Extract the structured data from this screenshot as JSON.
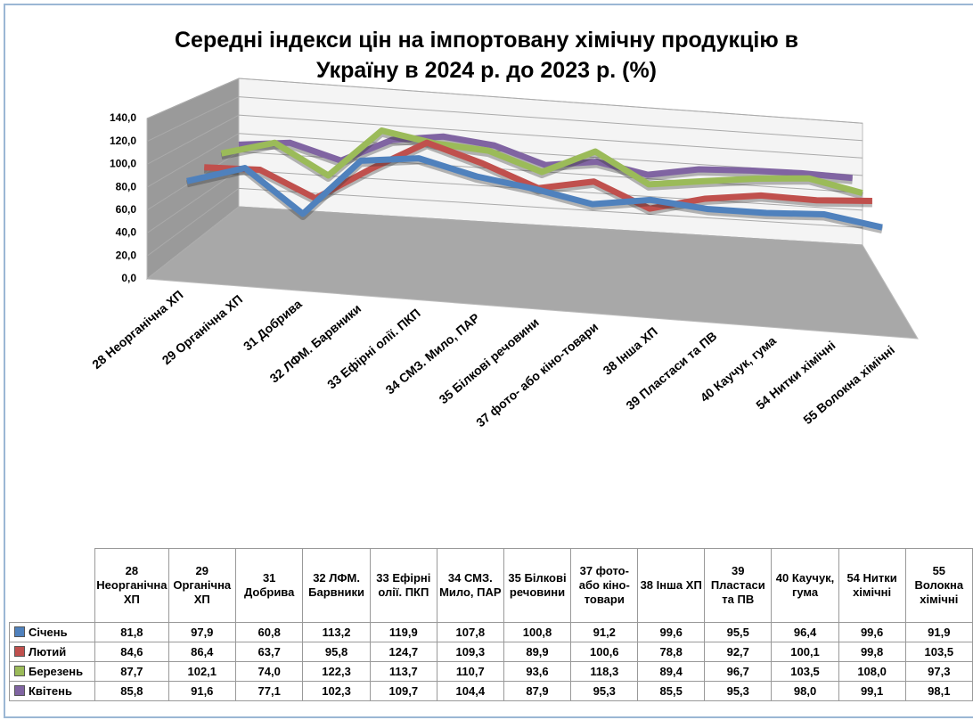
{
  "chart_data": {
    "type": "line3d",
    "title": "Середні  індекси цін на імпортовану хімічну продукцію в Україну  в 2024 р. до 2023 р. (%)",
    "categories": [
      "28  Неорганічна ХП",
      "29 Органічна ХП",
      "31 Добрива",
      "32 ЛФМ. Барвники",
      "33 Ефірні олії. ПКП",
      "34  СМЗ. Мило, ПАР",
      "35 Білкові речовини",
      "37 фото- або кіно-товари",
      "38  Інша ХП",
      "39  Пластаси та ПВ",
      "40 Каучук, гума",
      "54 Нитки  хімічні",
      "55 Волокна хімічні"
    ],
    "series": [
      {
        "name": "Січень",
        "color": "#4f81bd",
        "values": [
          81.8,
          97.9,
          60.8,
          113.2,
          119.9,
          107.8,
          100.8,
          91.2,
          99.6,
          95.5,
          96.4,
          99.6,
          91.9
        ],
        "value_labels": [
          "81,8",
          "97,9",
          "60,8",
          "113,2",
          "119,9",
          "107,8",
          "100,8",
          "91,2",
          "99,6",
          "95,5",
          "96,4",
          "99,6",
          "91,9"
        ]
      },
      {
        "name": "Лютий",
        "color": "#c0504d",
        "values": [
          84.6,
          86.4,
          63.7,
          95.8,
          124.7,
          109.3,
          89.9,
          100.6,
          78.8,
          92.7,
          100.1,
          99.8,
          103.5
        ],
        "value_labels": [
          "84,6",
          "86,4",
          "63,7",
          "95,8",
          "124,7",
          "109,3",
          "89,9",
          "100,6",
          "78,8",
          "92,7",
          "100,1",
          "99,8",
          "103,5"
        ]
      },
      {
        "name": "Березень",
        "color": "#9bbb59",
        "values": [
          87.7,
          102.1,
          74.0,
          122.3,
          113.7,
          110.7,
          93.6,
          118.3,
          89.4,
          96.7,
          103.5,
          108.0,
          97.3
        ],
        "value_labels": [
          "87,7",
          "102,1",
          "74,0",
          "122,3",
          "113,7",
          "110,7",
          "93,6",
          "118,3",
          "89,4",
          "96,7",
          "103,5",
          "108,0",
          "97,3"
        ]
      },
      {
        "name": "Квітень",
        "color": "#8064a2",
        "values": [
          85.8,
          91.6,
          77.1,
          102.3,
          109.7,
          104.4,
          87.9,
          95.3,
          85.5,
          95.3,
          98.0,
          99.1,
          98.1
        ],
        "value_labels": [
          "85,8",
          "91,6",
          "77,1",
          "102,3",
          "109,7",
          "104,4",
          "87,9",
          "95,3",
          "85,5",
          "95,3",
          "98,0",
          "99,1",
          "98,1"
        ]
      }
    ],
    "ylim": [
      0,
      140
    ],
    "yticks": [
      {
        "value": 0,
        "label": "0,0"
      },
      {
        "value": 20,
        "label": "20,0"
      },
      {
        "value": 40,
        "label": "40,0"
      },
      {
        "value": 60,
        "label": "60,0"
      },
      {
        "value": 80,
        "label": "80,0"
      },
      {
        "value": 100,
        "label": "100,0"
      },
      {
        "value": 120,
        "label": "120,0"
      },
      {
        "value": 140,
        "label": "140,0"
      }
    ],
    "grid": true
  }
}
